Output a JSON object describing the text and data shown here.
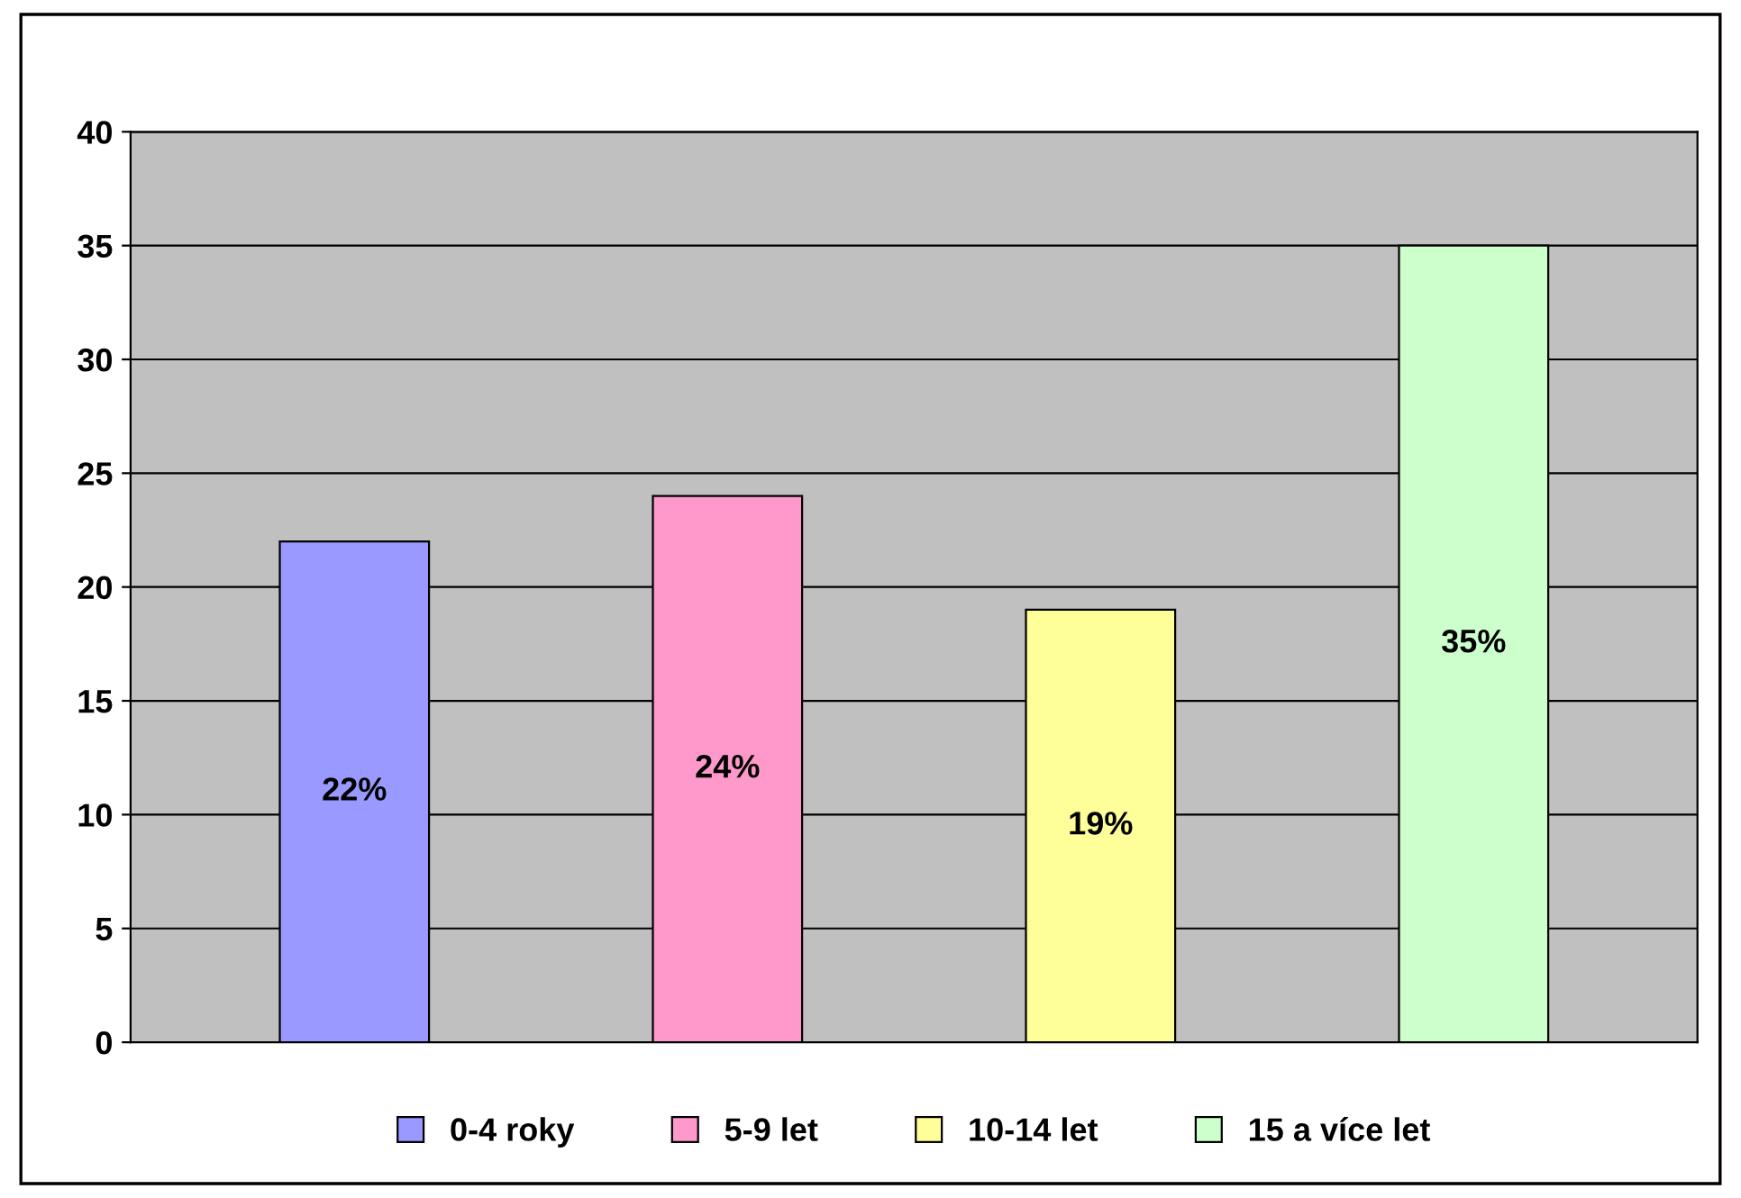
{
  "chart_data": {
    "type": "bar",
    "categories": [
      null,
      null,
      null,
      null
    ],
    "series": [
      {
        "name": "0-4 roky",
        "color": "#9999ff",
        "values": [
          22,
          null,
          null,
          null
        ],
        "value_labels": [
          "22%",
          null,
          null,
          null
        ]
      },
      {
        "name": "5-9 let",
        "color": "#ff99cc",
        "values": [
          null,
          24,
          null,
          null
        ],
        "value_labels": [
          null,
          "24%",
          null,
          null
        ]
      },
      {
        "name": "10-14 let",
        "color": "#ffff99",
        "values": [
          null,
          null,
          19,
          null
        ],
        "value_labels": [
          null,
          null,
          "19%",
          null
        ]
      },
      {
        "name": "15 a více let",
        "color": "#ccffcc",
        "values": [
          null,
          null,
          null,
          35
        ],
        "value_labels": [
          null,
          null,
          null,
          "35%"
        ]
      }
    ],
    "ylim": [
      0,
      40
    ],
    "yticks": [
      0,
      5,
      10,
      15,
      20,
      25,
      30,
      35,
      40
    ],
    "grid": "y",
    "legend": "bottom"
  }
}
